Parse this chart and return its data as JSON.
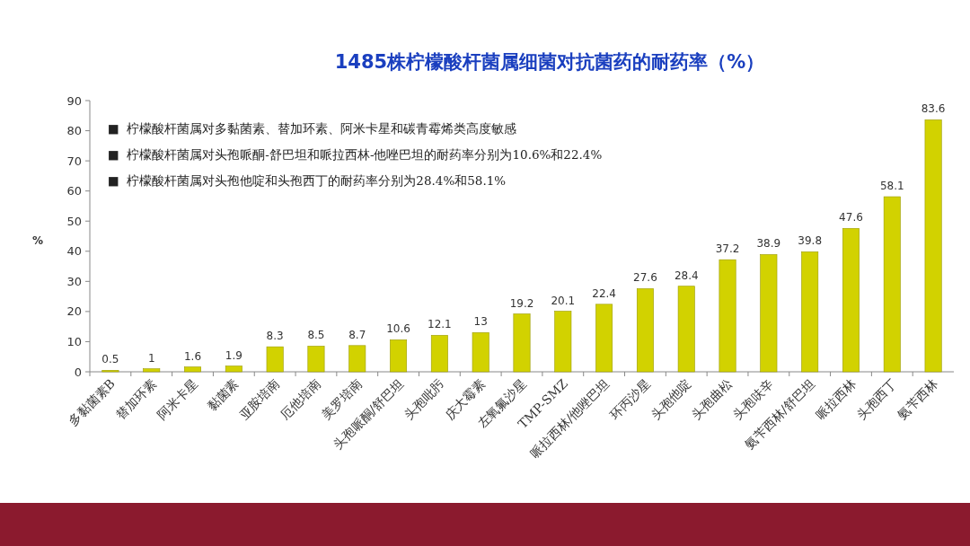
{
  "chart_data": {
    "type": "bar",
    "title": "1485株柠檬酸杆菌属细菌对抗菌药的耐药率（%）",
    "ylabel": "%",
    "categories": [
      "多黏菌素B",
      "替加环素",
      "阿米卡星",
      "黏菌素",
      "亚胺培南",
      "厄他培南",
      "美罗培南",
      "头孢哌酮/舒巴坦",
      "头孢吡肟",
      "庆大霉素",
      "左氧氟沙星",
      "TMP-SMZ",
      "哌拉西林/他唑巴坦",
      "环丙沙星",
      "头孢他啶",
      "头孢曲松",
      "头孢呋辛",
      "氨苄西林/舒巴坦",
      "哌拉西林",
      "头孢西丁",
      "氨苄西林"
    ],
    "values": [
      0.5,
      1,
      1.6,
      1.9,
      8.3,
      8.5,
      8.7,
      10.6,
      12.1,
      13,
      19.2,
      20.1,
      22.4,
      27.6,
      28.4,
      37.2,
      38.9,
      39.8,
      47.6,
      58.1,
      83.6
    ],
    "color": "#d2d200",
    "ylim": [
      0,
      90
    ],
    "yticks": [
      0,
      10,
      20,
      30,
      40,
      50,
      60,
      70,
      80,
      90
    ],
    "data_labels": true,
    "annotations": [
      "■  柠檬酸杆菌属对多黏菌素、替加环素、阿米卡星和碳青霉烯类高度敏感",
      "■  柠檬酸杆菌属对头孢哌酮-舒巴坦和哌拉西林-他唑巴坦的耐药率分别为10.6%和22.4%",
      "■  柠檬酸杆菌属对头孢他啶和头孢西丁的耐药率分别为28.4%和58.1%"
    ]
  }
}
